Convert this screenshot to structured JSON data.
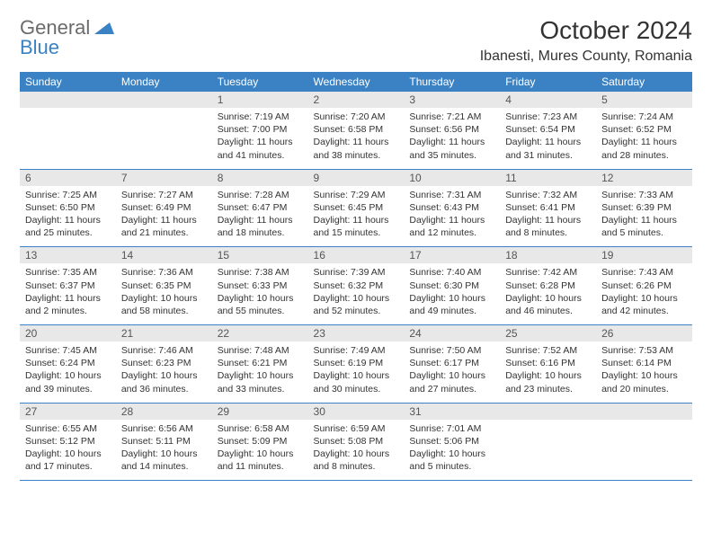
{
  "logo": {
    "text1": "General",
    "text2": "Blue"
  },
  "title": "October 2024",
  "location": "Ibanesti, Mures County, Romania",
  "colors": {
    "header_bg": "#3b82c4",
    "header_text": "#ffffff",
    "daynum_bg": "#e8e8e8",
    "border": "#3b82c4",
    "logo_gray": "#6b6b6b",
    "logo_blue": "#3b82c4"
  },
  "day_names": [
    "Sunday",
    "Monday",
    "Tuesday",
    "Wednesday",
    "Thursday",
    "Friday",
    "Saturday"
  ],
  "weeks": [
    [
      null,
      null,
      {
        "n": "1",
        "sr": "7:19 AM",
        "ss": "7:00 PM",
        "dl": "11 hours and 41 minutes."
      },
      {
        "n": "2",
        "sr": "7:20 AM",
        "ss": "6:58 PM",
        "dl": "11 hours and 38 minutes."
      },
      {
        "n": "3",
        "sr": "7:21 AM",
        "ss": "6:56 PM",
        "dl": "11 hours and 35 minutes."
      },
      {
        "n": "4",
        "sr": "7:23 AM",
        "ss": "6:54 PM",
        "dl": "11 hours and 31 minutes."
      },
      {
        "n": "5",
        "sr": "7:24 AM",
        "ss": "6:52 PM",
        "dl": "11 hours and 28 minutes."
      }
    ],
    [
      {
        "n": "6",
        "sr": "7:25 AM",
        "ss": "6:50 PM",
        "dl": "11 hours and 25 minutes."
      },
      {
        "n": "7",
        "sr": "7:27 AM",
        "ss": "6:49 PM",
        "dl": "11 hours and 21 minutes."
      },
      {
        "n": "8",
        "sr": "7:28 AM",
        "ss": "6:47 PM",
        "dl": "11 hours and 18 minutes."
      },
      {
        "n": "9",
        "sr": "7:29 AM",
        "ss": "6:45 PM",
        "dl": "11 hours and 15 minutes."
      },
      {
        "n": "10",
        "sr": "7:31 AM",
        "ss": "6:43 PM",
        "dl": "11 hours and 12 minutes."
      },
      {
        "n": "11",
        "sr": "7:32 AM",
        "ss": "6:41 PM",
        "dl": "11 hours and 8 minutes."
      },
      {
        "n": "12",
        "sr": "7:33 AM",
        "ss": "6:39 PM",
        "dl": "11 hours and 5 minutes."
      }
    ],
    [
      {
        "n": "13",
        "sr": "7:35 AM",
        "ss": "6:37 PM",
        "dl": "11 hours and 2 minutes."
      },
      {
        "n": "14",
        "sr": "7:36 AM",
        "ss": "6:35 PM",
        "dl": "10 hours and 58 minutes."
      },
      {
        "n": "15",
        "sr": "7:38 AM",
        "ss": "6:33 PM",
        "dl": "10 hours and 55 minutes."
      },
      {
        "n": "16",
        "sr": "7:39 AM",
        "ss": "6:32 PM",
        "dl": "10 hours and 52 minutes."
      },
      {
        "n": "17",
        "sr": "7:40 AM",
        "ss": "6:30 PM",
        "dl": "10 hours and 49 minutes."
      },
      {
        "n": "18",
        "sr": "7:42 AM",
        "ss": "6:28 PM",
        "dl": "10 hours and 46 minutes."
      },
      {
        "n": "19",
        "sr": "7:43 AM",
        "ss": "6:26 PM",
        "dl": "10 hours and 42 minutes."
      }
    ],
    [
      {
        "n": "20",
        "sr": "7:45 AM",
        "ss": "6:24 PM",
        "dl": "10 hours and 39 minutes."
      },
      {
        "n": "21",
        "sr": "7:46 AM",
        "ss": "6:23 PM",
        "dl": "10 hours and 36 minutes."
      },
      {
        "n": "22",
        "sr": "7:48 AM",
        "ss": "6:21 PM",
        "dl": "10 hours and 33 minutes."
      },
      {
        "n": "23",
        "sr": "7:49 AM",
        "ss": "6:19 PM",
        "dl": "10 hours and 30 minutes."
      },
      {
        "n": "24",
        "sr": "7:50 AM",
        "ss": "6:17 PM",
        "dl": "10 hours and 27 minutes."
      },
      {
        "n": "25",
        "sr": "7:52 AM",
        "ss": "6:16 PM",
        "dl": "10 hours and 23 minutes."
      },
      {
        "n": "26",
        "sr": "7:53 AM",
        "ss": "6:14 PM",
        "dl": "10 hours and 20 minutes."
      }
    ],
    [
      {
        "n": "27",
        "sr": "6:55 AM",
        "ss": "5:12 PM",
        "dl": "10 hours and 17 minutes."
      },
      {
        "n": "28",
        "sr": "6:56 AM",
        "ss": "5:11 PM",
        "dl": "10 hours and 14 minutes."
      },
      {
        "n": "29",
        "sr": "6:58 AM",
        "ss": "5:09 PM",
        "dl": "10 hours and 11 minutes."
      },
      {
        "n": "30",
        "sr": "6:59 AM",
        "ss": "5:08 PM",
        "dl": "10 hours and 8 minutes."
      },
      {
        "n": "31",
        "sr": "7:01 AM",
        "ss": "5:06 PM",
        "dl": "10 hours and 5 minutes."
      },
      null,
      null
    ]
  ],
  "labels": {
    "sunrise": "Sunrise:",
    "sunset": "Sunset:",
    "daylight": "Daylight:"
  }
}
